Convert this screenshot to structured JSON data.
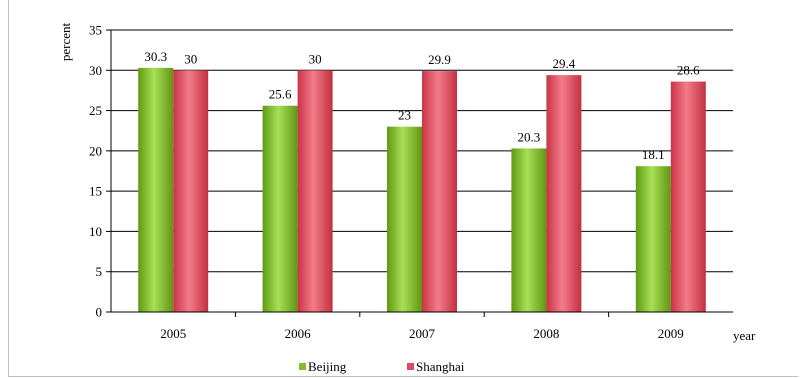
{
  "chart_data": {
    "type": "bar",
    "title": "",
    "xlabel": "year",
    "ylabel": "percent",
    "categories": [
      "2005",
      "2006",
      "2007",
      "2008",
      "2009"
    ],
    "ylim": [
      0,
      35
    ],
    "yticks": [
      0,
      5,
      10,
      15,
      20,
      25,
      30,
      35
    ],
    "grid": "horizontal",
    "legend": "bottom",
    "series": [
      {
        "name": "Beijing",
        "values": [
          30.3,
          25.6,
          23,
          20.3,
          18.1
        ],
        "color": "#7fbf2a"
      },
      {
        "name": "Shanghai",
        "values": [
          30,
          30,
          29.9,
          29.4,
          28.6
        ],
        "color": "#e04a5e"
      }
    ]
  }
}
